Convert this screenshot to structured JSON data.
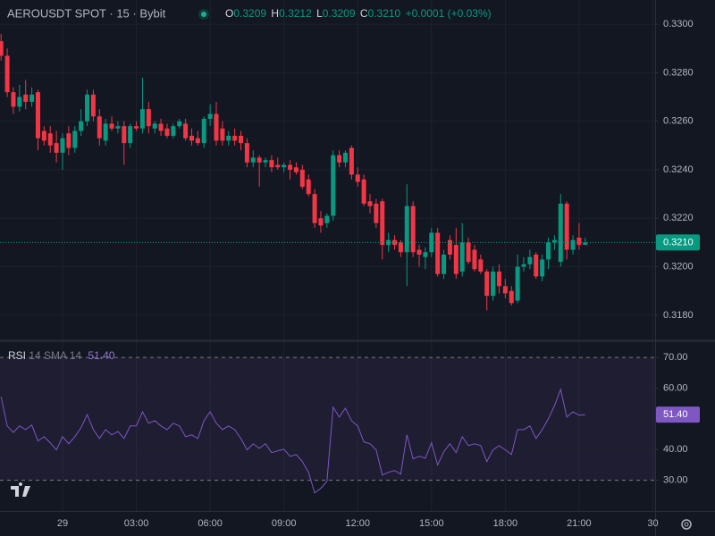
{
  "chart_data": [
    {
      "type": "candlestick",
      "title": "AEROUSDT SPOT · 15 · Bybit",
      "ohlc": [
        {
          "label": "O",
          "value": "0.3209"
        },
        {
          "label": "H",
          "value": "0.3212"
        },
        {
          "label": "L",
          "value": "0.3209"
        },
        {
          "label": "C",
          "value": "0.3210"
        }
      ],
      "change": "+0.0001 (+0.03%)",
      "categories": [
        null,
        null,
        null,
        null,
        null,
        null,
        null,
        null,
        null,
        null,
        "29",
        null,
        null,
        null,
        null,
        null,
        null,
        null,
        null,
        null,
        null,
        null,
        "03:00",
        null,
        null,
        null,
        null,
        null,
        null,
        null,
        null,
        null,
        null,
        null,
        "06:00",
        null,
        null,
        null,
        null,
        null,
        null,
        null,
        null,
        null,
        null,
        null,
        "09:00",
        null,
        null,
        null,
        null,
        null,
        null,
        null,
        null,
        null,
        null,
        null,
        "12:00",
        null,
        null,
        null,
        null,
        null,
        null,
        null,
        null,
        null,
        null,
        null,
        "15:00",
        null,
        null,
        null,
        null,
        null,
        null,
        null,
        null,
        null,
        null,
        null,
        "18:00",
        null,
        null,
        null,
        null,
        null,
        null,
        null,
        null,
        null,
        null,
        null,
        "21:00",
        null,
        null,
        null,
        null,
        null,
        null,
        null,
        null,
        null,
        null,
        null,
        "30"
      ],
      "open": [
        0.3293,
        0.3287,
        0.3272,
        0.3266,
        0.3271,
        0.3268,
        0.3272,
        0.3256,
        0.3255,
        0.3251,
        0.3247,
        0.3255,
        0.3249,
        0.3256,
        0.326,
        0.3271,
        0.3262,
        0.3252,
        0.3259,
        0.3257,
        0.3258,
        0.3251,
        0.3258,
        0.3257,
        0.3265,
        0.3257,
        0.3259,
        0.3257,
        0.3254,
        0.3258,
        0.3259,
        0.3254,
        0.3253,
        0.3251,
        0.3261,
        0.3263,
        0.3257,
        0.3252,
        0.3254,
        0.3254,
        0.3251,
        0.3243,
        0.3245,
        0.3243,
        0.3244,
        0.3242,
        0.3241,
        0.3242,
        0.3241,
        0.324,
        0.3236,
        0.323,
        0.322,
        0.3218,
        0.3221,
        0.3246,
        0.3243,
        0.3249,
        0.3238,
        0.3236,
        0.3227,
        0.3226,
        0.3227,
        0.3209,
        0.3211,
        0.321,
        0.3206,
        0.3225,
        0.3207,
        0.3204,
        0.3206,
        0.3214,
        0.3197,
        0.3211,
        0.3209,
        0.3198,
        0.321,
        0.3207,
        0.3203,
        0.3198,
        0.3188,
        0.3198,
        0.3192,
        0.319,
        0.3186,
        0.32,
        0.3201,
        0.3205,
        0.3196,
        0.3203,
        0.321,
        0.3202,
        0.3226,
        0.3207,
        0.3212,
        0.3209,
        null,
        null,
        null,
        null,
        null,
        null,
        null,
        null,
        null,
        null,
        null
      ],
      "high": [
        0.3296,
        0.329,
        0.3274,
        0.3275,
        0.3277,
        0.3274,
        0.3273,
        0.3258,
        0.3258,
        0.3256,
        0.3255,
        0.3258,
        0.3258,
        0.3265,
        0.3273,
        0.3273,
        0.3265,
        0.3261,
        0.3262,
        0.326,
        0.326,
        0.3259,
        0.326,
        0.3278,
        0.3268,
        0.326,
        0.3261,
        0.3259,
        0.3259,
        0.3261,
        0.3261,
        0.3257,
        0.3256,
        0.3262,
        0.3267,
        0.3268,
        0.326,
        0.3256,
        0.3257,
        0.3256,
        0.3253,
        0.3248,
        0.3246,
        0.3245,
        0.3246,
        0.3245,
        0.3243,
        0.3244,
        0.3243,
        0.3242,
        0.3238,
        0.3232,
        0.3223,
        0.3222,
        0.3248,
        0.3248,
        0.3248,
        0.325,
        0.3241,
        0.3238,
        0.323,
        0.3228,
        0.3228,
        0.3214,
        0.3213,
        0.3211,
        0.3234,
        0.3227,
        0.3209,
        0.3208,
        0.3216,
        0.3216,
        0.3207,
        0.3213,
        0.3216,
        0.3218,
        0.3212,
        0.3209,
        0.3205,
        0.3199,
        0.32,
        0.3201,
        0.3195,
        0.3192,
        0.3205,
        0.3204,
        0.3207,
        0.3206,
        0.3205,
        0.3212,
        0.3213,
        0.323,
        0.3227,
        0.3213,
        0.3218,
        0.3212,
        null,
        null,
        null,
        null,
        null,
        null,
        null,
        null,
        null,
        null,
        null
      ],
      "low": [
        0.3285,
        0.327,
        0.3263,
        0.3264,
        0.3265,
        0.3266,
        0.3248,
        0.325,
        0.3247,
        0.3243,
        0.324,
        0.3246,
        0.3247,
        0.3254,
        0.3258,
        0.326,
        0.325,
        0.325,
        0.3256,
        0.3255,
        0.3242,
        0.3249,
        0.3256,
        0.3255,
        0.3255,
        0.3255,
        0.3254,
        0.3253,
        0.3253,
        0.3257,
        0.3252,
        0.325,
        0.325,
        0.3249,
        0.3258,
        0.325,
        0.325,
        0.325,
        0.325,
        0.3248,
        0.3241,
        0.3241,
        0.3233,
        0.3241,
        0.3239,
        0.324,
        0.3239,
        0.3236,
        0.3238,
        0.3232,
        0.3229,
        0.3216,
        0.3214,
        0.3216,
        0.3219,
        0.3241,
        0.3241,
        0.3236,
        0.3233,
        0.3225,
        0.3222,
        0.3216,
        0.3203,
        0.3206,
        0.3207,
        0.3204,
        0.3192,
        0.3204,
        0.32,
        0.3199,
        0.3204,
        0.3196,
        0.3195,
        0.3203,
        0.3195,
        0.3196,
        0.3201,
        0.3198,
        0.3197,
        0.3182,
        0.3186,
        0.3189,
        0.3187,
        0.3184,
        0.3185,
        0.3198,
        0.3199,
        0.3195,
        0.3194,
        0.3199,
        0.3207,
        0.32,
        0.3203,
        0.3205,
        0.3207,
        0.3209,
        null,
        null,
        null,
        null,
        null,
        null,
        null,
        null,
        null,
        null,
        null
      ],
      "close": [
        0.3287,
        0.3272,
        0.3266,
        0.327,
        0.3268,
        0.3271,
        0.3253,
        0.3252,
        0.325,
        0.3247,
        0.3253,
        0.3249,
        0.3256,
        0.326,
        0.3271,
        0.3262,
        0.3253,
        0.3259,
        0.3257,
        0.3258,
        0.3251,
        0.3258,
        0.3257,
        0.3265,
        0.3258,
        0.3259,
        0.3256,
        0.3254,
        0.3258,
        0.326,
        0.3253,
        0.3252,
        0.3251,
        0.3261,
        0.3263,
        0.3252,
        0.3252,
        0.3254,
        0.3252,
        0.3251,
        0.3243,
        0.3245,
        0.3243,
        0.3244,
        0.3241,
        0.3241,
        0.3242,
        0.324,
        0.3239,
        0.3233,
        0.323,
        0.3218,
        0.3217,
        0.3221,
        0.3246,
        0.3243,
        0.3247,
        0.3238,
        0.3235,
        0.3226,
        0.3225,
        0.3218,
        0.3209,
        0.3211,
        0.3209,
        0.3206,
        0.3225,
        0.3206,
        0.3205,
        0.3206,
        0.3214,
        0.3197,
        0.3205,
        0.3205,
        0.3197,
        0.321,
        0.3202,
        0.3199,
        0.3198,
        0.3188,
        0.3198,
        0.3192,
        0.3189,
        0.3185,
        0.32,
        0.3201,
        0.3204,
        0.3196,
        0.3203,
        0.321,
        0.3211,
        0.3226,
        0.3207,
        0.3211,
        0.3209,
        0.321,
        null,
        null,
        null,
        null,
        null,
        null,
        null,
        null,
        null,
        null,
        null
      ],
      "up_color": "#089981",
      "down_color": "#f23645",
      "ylim": [
        0.317,
        0.331
      ],
      "yticks": [
        {
          "value": 0.318,
          "label": "0.3180"
        },
        {
          "value": 0.32,
          "label": "0.3200"
        },
        {
          "value": 0.322,
          "label": "0.3220"
        },
        {
          "value": 0.324,
          "label": "0.3240"
        },
        {
          "value": 0.326,
          "label": "0.3260"
        },
        {
          "value": 0.328,
          "label": "0.3280"
        },
        {
          "value": 0.33,
          "label": "0.3300"
        }
      ],
      "last_price": {
        "value": 0.321,
        "label": "0.3210"
      },
      "grid": true
    },
    {
      "type": "line",
      "title": "RSI",
      "subtitle": "14 SMA 14",
      "values": [
        57.2,
        47.7,
        45.6,
        47.7,
        46.5,
        48,
        42.8,
        44.2,
        42.2,
        39.9,
        44.2,
        41.9,
        44.2,
        47.1,
        51.4,
        46.5,
        43.6,
        46.5,
        44.8,
        45.9,
        43.6,
        47.7,
        47.7,
        52.3,
        48.6,
        49.4,
        47.7,
        46.5,
        48.6,
        47.7,
        44.2,
        44.8,
        43.6,
        49.4,
        52.3,
        48.6,
        46.5,
        47.7,
        46.5,
        43.6,
        39.9,
        41.9,
        40.4,
        41.9,
        39,
        39.6,
        40.1,
        37.8,
        38.4,
        36.1,
        32.6,
        25.9,
        27.4,
        29.7,
        53.8,
        50.6,
        53.5,
        49.4,
        47.7,
        42.5,
        41.9,
        39.9,
        31.7,
        32.6,
        33.2,
        32,
        44.8,
        37,
        37.8,
        37.2,
        42.2,
        35,
        39.3,
        41.9,
        39,
        44.2,
        41.3,
        41.9,
        41.3,
        36.1,
        39.9,
        41.3,
        39.9,
        38.4,
        46.5,
        46.5,
        47.7,
        43.6,
        46.5,
        50,
        54.3,
        59.6,
        50.6,
        52.3,
        51.2,
        51.4,
        null,
        null,
        null,
        null,
        null,
        null,
        null,
        null,
        null,
        null,
        null
      ],
      "color": "#7e57c2",
      "ylim": [
        20,
        75
      ],
      "yticks": [
        {
          "value": 30,
          "label": "30.00"
        },
        {
          "value": 40,
          "label": "40.00"
        },
        {
          "value": 60,
          "label": "60.00"
        },
        {
          "value": 70,
          "label": "70.00"
        }
      ],
      "band": {
        "lower": 30,
        "upper": 70
      },
      "last_value": {
        "value": 51.4,
        "label": "51.40"
      },
      "grid": true
    }
  ]
}
